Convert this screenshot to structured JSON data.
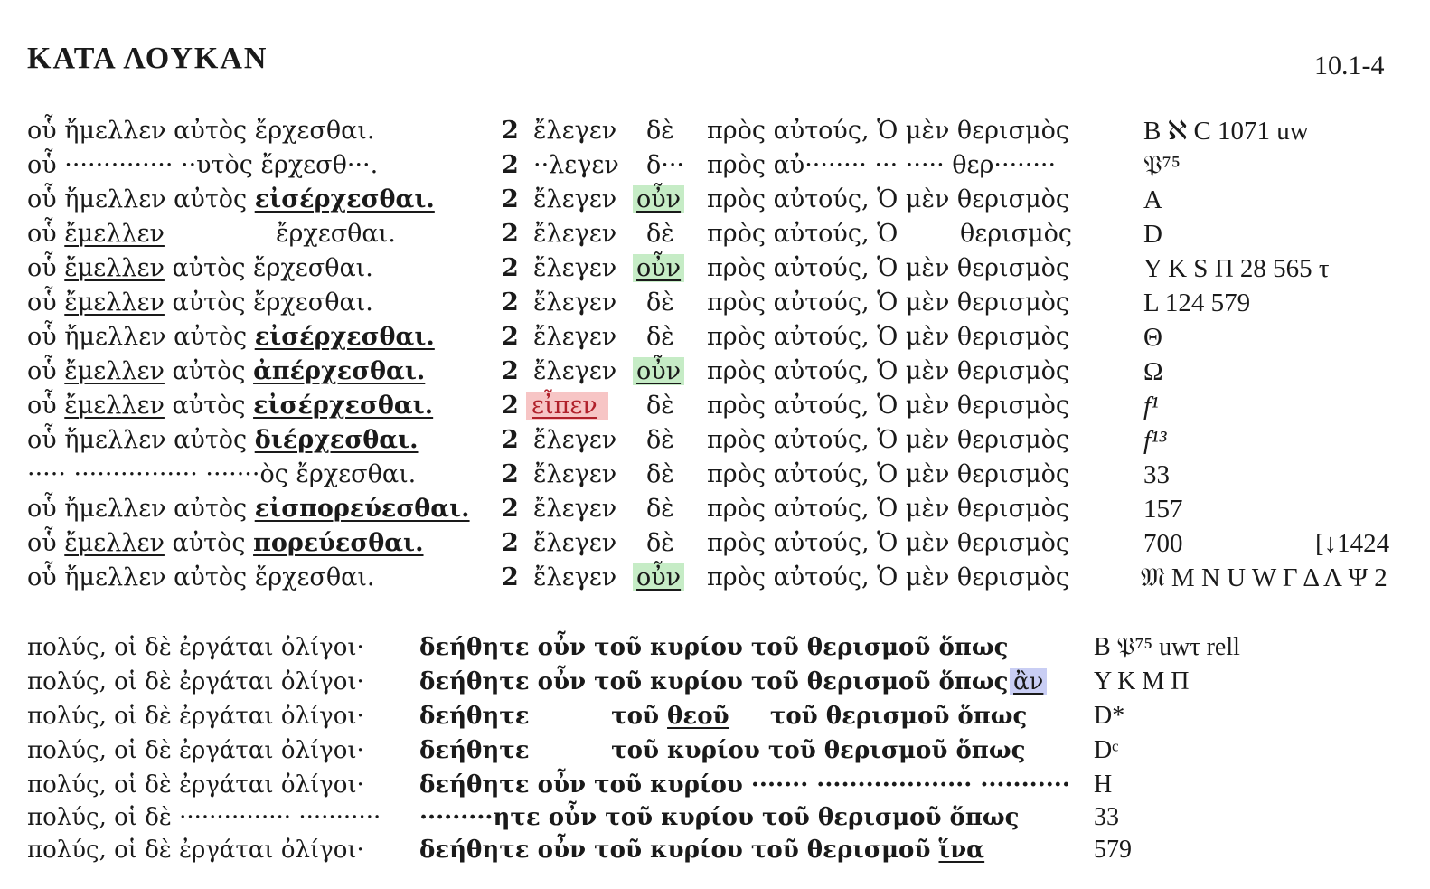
{
  "header": {
    "title": "ΚΑΤΑ ΛΟΥΚΑΝ",
    "ref": "10.1-4"
  },
  "collation1": [
    {
      "a": "οὗ ἤμελλεν αὐτὸς ἔρχεσθαι.",
      "vn": "2",
      "b": "ἔλεγεν",
      "c": "δὲ",
      "d": "πρὸς αὐτούς, Ὁ μὲν θερισμὸς",
      "w": "B ℵ C 1071  uw"
    },
    {
      "a": "οὗ ·············· ··υτὸς ἔρχεσθ···.",
      "vn": "2",
      "b": "··λεγεν",
      "c": "δ···",
      "d": "πρὸς αὐ········ ··· ····· θερ········",
      "w": "𝔓⁷⁵"
    },
    {
      "a1": "οὗ ἤμελλεν αὐτὸς ",
      "a2": "εἰσέρχεσθαι.",
      "vn": "2",
      "b": "ἔλεγεν",
      "c": "οὖν",
      "d": "πρὸς αὐτούς, Ὁ μὲν θερισμὸς",
      "w": "A"
    },
    {
      "a1": "οὗ ",
      "a2": "ἔμελλεν",
      "a3": "ἔρχεσθαι.",
      "vn": "2",
      "b": "ἔλεγεν",
      "c": "δὲ",
      "d": "πρὸς αὐτούς, Ὁ        θερισμὸς",
      "w": "D"
    },
    {
      "a1": "οὗ ",
      "a2": "ἔμελλεν",
      "a3": " αὐτὸς ἔρχεσθαι.",
      "vn": "2",
      "b": "ἔλεγεν",
      "c": "οὖν",
      "d": "πρὸς αὐτούς, Ὁ μὲν θερισμὸς",
      "w": "Y K S Π 28 565 τ"
    },
    {
      "a1": "οὗ ",
      "a2": "ἔμελλεν",
      "a3": " αὐτὸς ἔρχεσθαι.",
      "vn": "2",
      "b": "ἔλεγεν",
      "c": "δὲ",
      "d": "πρὸς αὐτούς, Ὁ μὲν θερισμὸς",
      "w": "L 124 579"
    },
    {
      "a1": "οὗ ἤμελλεν αὐτὸς ",
      "a2": "εἰσέρχεσθαι.",
      "vn": "2",
      "b": "ἔλεγεν",
      "c": "δὲ",
      "d": "πρὸς αὐτούς, Ὁ μὲν θερισμὸς",
      "w": "Θ"
    },
    {
      "a1": "οὗ ",
      "a2": "ἔμελλεν",
      "a3": " αὐτὸς ",
      "a4": "ἀπέρχεσθαι.",
      "vn": "2",
      "b": "ἔλεγεν",
      "c": "οὖν",
      "d": "πρὸς αὐτούς, Ὁ μὲν θερισμὸς",
      "w": "Ω"
    },
    {
      "a1": "οὗ ",
      "a2": "ἔμελλεν",
      "a3": " αὐτὸς ",
      "a4": "εἰσέρχεσθαι.",
      "vn": "2",
      "b": "εἶπεν",
      "c": "δὲ",
      "d": "πρὸς αὐτούς, Ὁ μὲν θερισμὸς",
      "w": "f¹"
    },
    {
      "a1": "οὗ ἤμελλεν αὐτὸς ",
      "a2": "διέρχεσθαι.",
      "vn": "2",
      "b": "ἔλεγεν",
      "c": "δὲ",
      "d": "πρὸς αὐτούς, Ὁ μὲν θερισμὸς",
      "w": "f¹³"
    },
    {
      "a": "·····  ················  ·······ὸς ἔρχεσθαι.",
      "vn": "2",
      "b": "ἔλεγεν",
      "c": "δὲ",
      "d": "πρὸς αὐτούς, Ὁ μὲν θερισμὸς",
      "w": "33"
    },
    {
      "a1": "οὗ ἤμελλεν αὐτὸς ",
      "a2": "εἰσπορεύεσθαι.",
      "vn": "2",
      "b": "ἔλεγεν",
      "c": "δὲ",
      "d": "πρὸς αὐτούς, Ὁ μὲν θερισμὸς",
      "w": "157"
    },
    {
      "a1": "οὗ ",
      "a2": "ἔμελλεν",
      "a3": " αὐτὸς ",
      "a4": "πορεύεσθαι.",
      "vn": "2",
      "b": "ἔλεγεν",
      "c": "δὲ",
      "d": "πρὸς αὐτούς, Ὁ μὲν θερισμὸς",
      "w": "700",
      "w2": "[↓1424"
    },
    {
      "a": "οὗ ἤμελλεν αὐτὸς ἔρχεσθαι.",
      "vn": "2",
      "b": "ἔλεγεν",
      "c": "οὖν",
      "d": "πρὸς αὐτούς, Ὁ μὲν θερισμὸς",
      "w": "𝔐 M N U W Γ Δ Λ Ψ 2"
    }
  ],
  "collation2": [
    {
      "a": "πολύς, οἱ δὲ ἐργάται ὀλίγοι·",
      "b": "δεήθητε οὖν τοῦ κυρίου τοῦ θερισμοῦ ὅπως",
      "w": "B 𝔓⁷⁵  uwτ  rell"
    },
    {
      "a": "πολύς, οἱ δὲ ἐργάται ὀλίγοι·",
      "b": "δεήθητε οὖν τοῦ κυρίου τοῦ θερισμοῦ ὅπως",
      "e": "ἂν",
      "w": "Y K M Π"
    },
    {
      "a": "πολύς, οἱ δὲ ἐργάται ὀλίγοι·",
      "b1": "δεήθητε          τοῦ ",
      "b2": "θεοῦ",
      "b3": "     τοῦ θερισμοῦ ὅπως",
      "w": "D*"
    },
    {
      "a": "πολύς, οἱ δὲ ἐργάται ὀλίγοι·",
      "b": "δεήθητε          τοῦ κυρίου τοῦ θερισμοῦ ὅπως",
      "w": "Dᶜ"
    },
    {
      "a": "πολύς, οἱ δὲ ἐργάται ὀλίγοι·",
      "b": "δεήθητε οὖν τοῦ κυρίου ······· ··················· ···········",
      "w": "H"
    },
    {
      "a": "πολύς, οἱ δὲ ··············· ···········",
      "b": "·········ητε οὖν τοῦ κυρίου τοῦ θερισμοῦ ὅπως",
      "w": "33"
    },
    {
      "a": "πολύς, οἱ δὲ ἐργάται ὀλίγοι·",
      "b": "δεήθητε οὖν τοῦ κυρίου τοῦ θερισμοῦ",
      "e": "ἵνα",
      "w": "579"
    }
  ]
}
